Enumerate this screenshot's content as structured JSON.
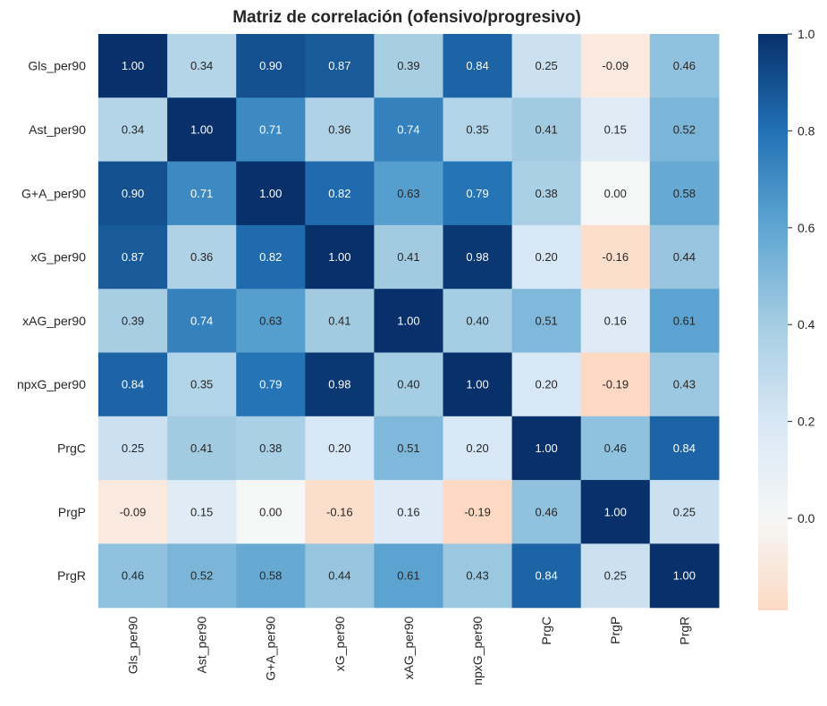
{
  "chart_data": {
    "type": "heatmap",
    "title": "Matriz de correlación (ofensivo/progresivo)",
    "xlabel": "",
    "ylabel": "",
    "rows": [
      "Gls_per90",
      "Ast_per90",
      "G+A_per90",
      "xG_per90",
      "xAG_per90",
      "npxG_per90",
      "PrgC",
      "PrgP",
      "PrgR"
    ],
    "cols": [
      "Gls_per90",
      "Ast_per90",
      "G+A_per90",
      "xG_per90",
      "xAG_per90",
      "npxG_per90",
      "PrgC",
      "PrgP",
      "PrgR"
    ],
    "values": [
      [
        1.0,
        0.34,
        0.9,
        0.87,
        0.39,
        0.84,
        0.25,
        -0.09,
        0.46
      ],
      [
        0.34,
        1.0,
        0.71,
        0.36,
        0.74,
        0.35,
        0.41,
        0.15,
        0.52
      ],
      [
        0.9,
        0.71,
        1.0,
        0.82,
        0.63,
        0.79,
        0.38,
        0.0,
        0.58
      ],
      [
        0.87,
        0.36,
        0.82,
        1.0,
        0.41,
        0.98,
        0.2,
        -0.16,
        0.44
      ],
      [
        0.39,
        0.74,
        0.63,
        0.41,
        1.0,
        0.4,
        0.51,
        0.16,
        0.61
      ],
      [
        0.84,
        0.35,
        0.79,
        0.98,
        0.4,
        1.0,
        0.2,
        -0.19,
        0.43
      ],
      [
        0.25,
        0.41,
        0.38,
        0.2,
        0.51,
        0.2,
        1.0,
        0.46,
        0.84
      ],
      [
        -0.09,
        0.15,
        0.0,
        -0.16,
        0.16,
        -0.19,
        0.46,
        1.0,
        0.25
      ],
      [
        0.46,
        0.52,
        0.58,
        0.44,
        0.61,
        0.43,
        0.84,
        0.25,
        1.0
      ]
    ],
    "value_format": "2 decimals",
    "colorbar": {
      "min": -0.19,
      "max": 1.0,
      "ticks": [
        "0.0",
        "0.2",
        "0.4",
        "0.6",
        "0.8",
        "1.0"
      ],
      "colormap": "diverging: light orange (negative) - white (0) - dark blue (1)",
      "colors": {
        "negative_end": "#fdd9c4",
        "zero": "#f5f7f6",
        "low": "#d8e7f5",
        "mid_low": "#a5cde3",
        "mid": "#5fa6d2",
        "mid_high": "#2271b5",
        "high": "#08306b"
      }
    },
    "grid": false,
    "legend": "colorbar-right"
  }
}
